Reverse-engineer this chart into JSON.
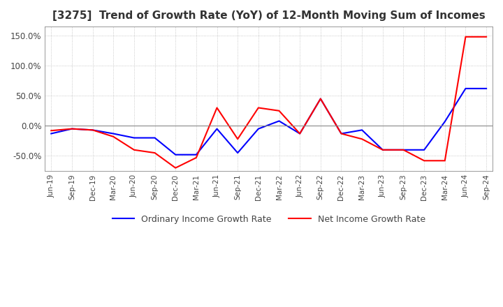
{
  "title": "[3275]  Trend of Growth Rate (YoY) of 12-Month Moving Sum of Incomes",
  "title_fontsize": 11,
  "ylim": [
    -75,
    165
  ],
  "yticks": [
    -50,
    0,
    50,
    100,
    150
  ],
  "ytick_labels": [
    "-50.0%",
    "0.0%",
    "50.0%",
    "100.0%",
    "150.0%"
  ],
  "background_color": "#ffffff",
  "grid_color": "#bbbbbb",
  "legend": [
    "Ordinary Income Growth Rate",
    "Net Income Growth Rate"
  ],
  "line_colors": [
    "#0000ff",
    "#ff0000"
  ],
  "x_labels": [
    "Jun-19",
    "Sep-19",
    "Dec-19",
    "Mar-20",
    "Jun-20",
    "Sep-20",
    "Dec-20",
    "Mar-21",
    "Jun-21",
    "Sep-21",
    "Dec-21",
    "Mar-22",
    "Jun-22",
    "Sep-22",
    "Dec-22",
    "Mar-23",
    "Jun-23",
    "Sep-23",
    "Dec-23",
    "Mar-24",
    "Jun-24",
    "Sep-24"
  ],
  "ordinary_income": [
    -13,
    -5,
    -7,
    -13,
    -20,
    -20,
    -48,
    -48,
    -5,
    -45,
    -5,
    8,
    -13,
    45,
    -13,
    -7,
    -40,
    -40,
    -40,
    7,
    62,
    62
  ],
  "net_income": [
    -8,
    -5,
    -7,
    -18,
    -40,
    -45,
    -70,
    -53,
    30,
    -22,
    30,
    25,
    -13,
    45,
    -13,
    -22,
    -40,
    -40,
    -58,
    -58,
    148,
    148
  ]
}
